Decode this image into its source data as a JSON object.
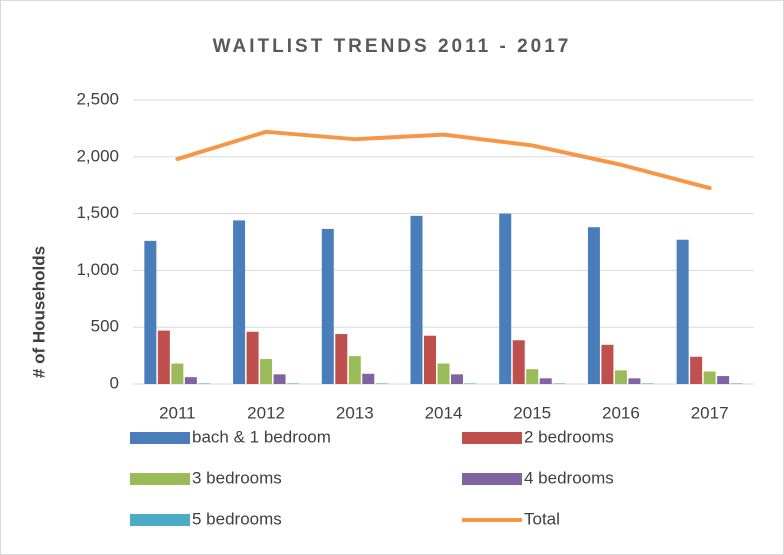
{
  "chart_data": {
    "type": "bar",
    "title": "WAITLIST TRENDS 2011 - 2017",
    "y_label": "# of Households",
    "categories": [
      "2011",
      "2012",
      "2013",
      "2014",
      "2015",
      "2016",
      "2017"
    ],
    "series": [
      {
        "name": "bach & 1 bedroom",
        "color": "#4a7ebb",
        "values": [
          1260,
          1440,
          1365,
          1480,
          1500,
          1380,
          1270
        ]
      },
      {
        "name": "2 bedrooms",
        "color": "#c0504d",
        "values": [
          470,
          460,
          440,
          425,
          385,
          345,
          240
        ]
      },
      {
        "name": "3 bedrooms",
        "color": "#9bbb59",
        "values": [
          180,
          220,
          245,
          180,
          130,
          120,
          110
        ]
      },
      {
        "name": "4 bedrooms",
        "color": "#8064a2",
        "values": [
          60,
          85,
          90,
          85,
          50,
          50,
          70
        ]
      },
      {
        "name": "5 bedrooms",
        "color": "#4bacc6",
        "values": [
          5,
          5,
          5,
          5,
          5,
          5,
          5
        ]
      },
      {
        "name": "Total",
        "color": "#f79646",
        "type": "line",
        "values": [
          1980,
          2220,
          2155,
          2195,
          2100,
          1930,
          1725
        ]
      }
    ],
    "ylim": [
      0,
      2500
    ],
    "yticks": [
      0,
      500,
      {
        "value": 1000,
        "label": "1,000"
      },
      {
        "value": 1500,
        "label": "1,500"
      },
      {
        "value": 2000,
        "label": "2,000"
      },
      {
        "value": 2500,
        "label": "2,500"
      }
    ],
    "grid": true,
    "legend": "bottom"
  }
}
